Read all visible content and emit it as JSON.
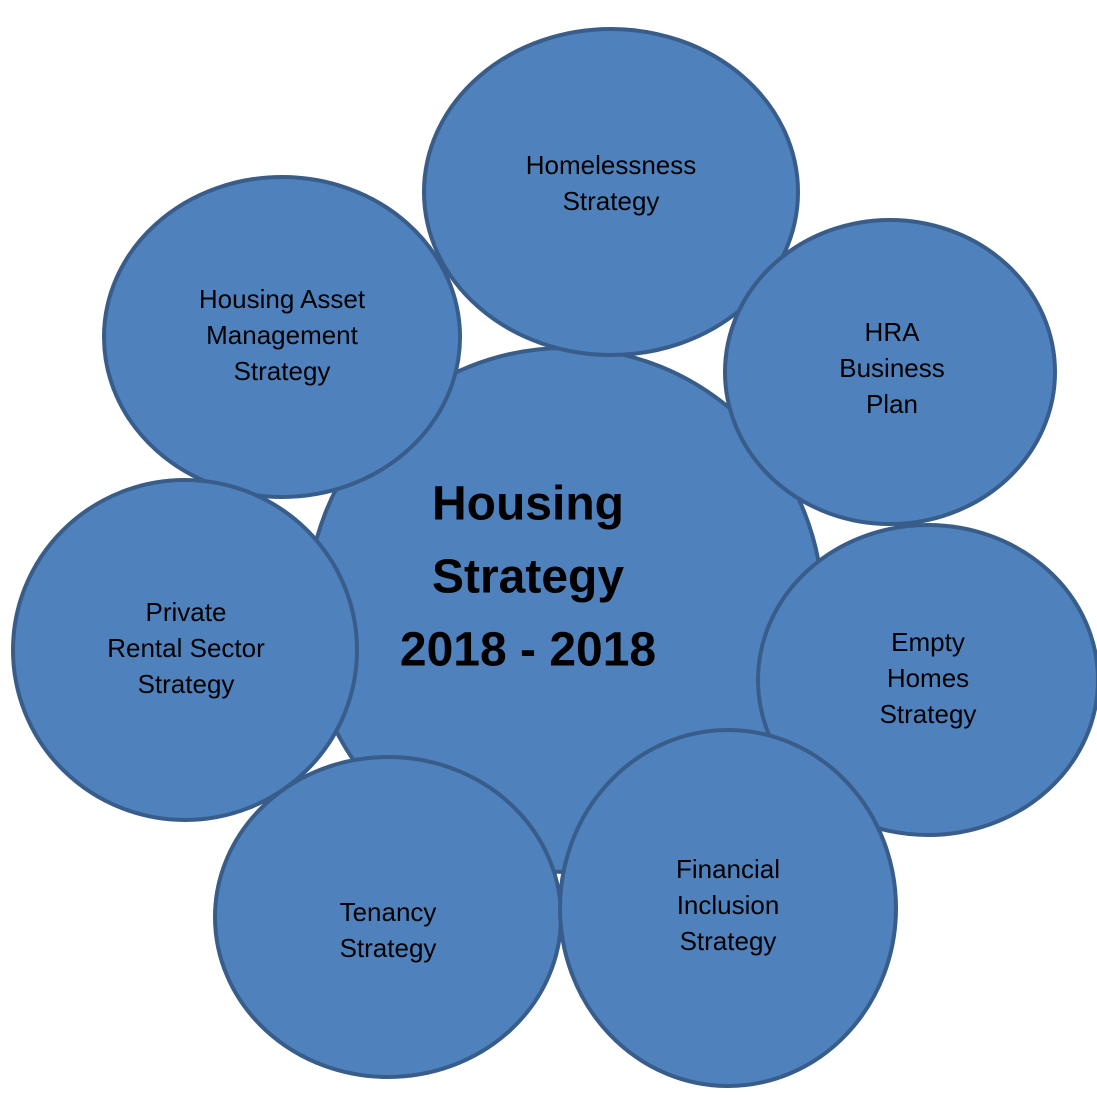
{
  "center": {
    "lines": [
      "Housing",
      "Strategy",
      "2018 - 2018"
    ]
  },
  "nodes": [
    {
      "lines": [
        "Housing Asset",
        "Management",
        "Strategy"
      ]
    },
    {
      "lines": [
        "Homelessness",
        "Strategy"
      ]
    },
    {
      "lines": [
        "HRA",
        "Business",
        "Plan"
      ]
    },
    {
      "lines": [
        "Private",
        "Rental Sector",
        "Strategy"
      ]
    },
    {
      "lines": [
        "Empty",
        "Homes",
        "Strategy"
      ]
    },
    {
      "lines": [
        "Tenancy",
        "Strategy"
      ]
    },
    {
      "lines": [
        "Financial",
        "Inclusion",
        "Strategy"
      ]
    }
  ]
}
